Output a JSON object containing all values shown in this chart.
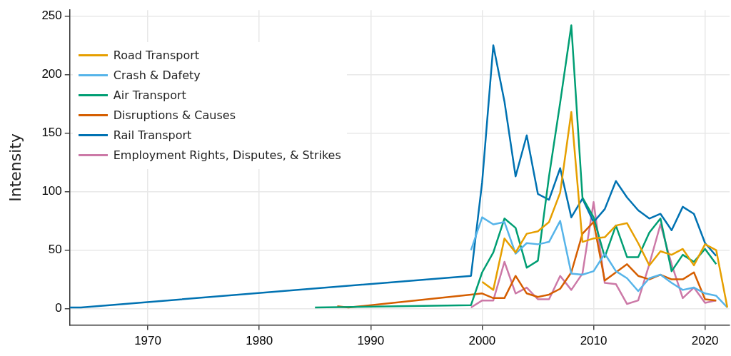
{
  "chart_data": {
    "type": "line",
    "ylabel": "Intensity",
    "xlim": [
      1963,
      2022.2
    ],
    "xticks": [
      1970,
      1980,
      1990,
      2000,
      2010,
      2020
    ],
    "ylim": [
      -14,
      255
    ],
    "yticks": [
      0,
      50,
      100,
      150,
      200,
      250
    ],
    "grid": true,
    "legend": "top left",
    "marker": "none",
    "line_style": "solid",
    "series": [
      {
        "name": "Road Transport",
        "color": "#e69f00",
        "x": [
          2000,
          2001,
          2002,
          2003,
          2004,
          2005,
          2006,
          2007,
          2008,
          2009,
          2010,
          2011,
          2012,
          2013,
          2014,
          2015,
          2016,
          2017,
          2018,
          2019,
          2020,
          2021,
          2022
        ],
        "values": [
          23,
          16,
          60,
          48,
          64,
          66,
          74,
          99,
          168,
          57,
          60,
          61,
          71,
          73,
          56,
          37,
          49,
          46,
          51,
          37,
          55,
          50,
          1
        ]
      },
      {
        "name": "Crash & Dafety",
        "color": "#56b4e9",
        "x": [
          1999,
          2000,
          2001,
          2002,
          2003,
          2004,
          2005,
          2006,
          2007,
          2008,
          2009,
          2010,
          2011,
          2012,
          2013,
          2014,
          2015,
          2016,
          2017,
          2018,
          2019,
          2020,
          2021,
          2022
        ],
        "values": [
          50,
          78,
          72,
          74,
          47,
          56,
          55,
          57,
          75,
          30,
          29,
          32,
          47,
          32,
          26,
          15,
          26,
          29,
          22,
          16,
          18,
          13,
          11,
          1
        ]
      },
      {
        "name": "Air Transport",
        "color": "#009e73",
        "x": [
          1985,
          1999,
          2000,
          2001,
          2002,
          2003,
          2004,
          2005,
          2006,
          2007,
          2008,
          2009,
          2010,
          2011,
          2012,
          2013,
          2014,
          2015,
          2016,
          2017,
          2018,
          2019,
          2020,
          2021
        ],
        "values": [
          1,
          3,
          31,
          48,
          77,
          69,
          35,
          41,
          113,
          176,
          242,
          95,
          78,
          44,
          71,
          44,
          44,
          65,
          77,
          32,
          46,
          40,
          51,
          38
        ]
      },
      {
        "name": "Disruptions & Causes",
        "color": "#d55e00",
        "x": [
          1987,
          1988,
          1999,
          2000,
          2001,
          2002,
          2003,
          2004,
          2005,
          2006,
          2007,
          2008,
          2009,
          2010,
          2011,
          2012,
          2013,
          2014,
          2015,
          2016,
          2017,
          2018,
          2019,
          2020,
          2021
        ],
        "values": [
          2,
          1,
          12,
          13,
          9,
          9,
          28,
          13,
          10,
          12,
          17,
          31,
          64,
          74,
          24,
          31,
          38,
          28,
          25,
          29,
          25,
          25,
          31,
          8,
          7
        ]
      },
      {
        "name": "Rail Transport",
        "color": "#0072b2",
        "x": [
          1963,
          1964,
          1999,
          2000,
          2001,
          2002,
          2003,
          2004,
          2005,
          2006,
          2007,
          2008,
          2009,
          2010,
          2011,
          2012,
          2013,
          2014,
          2015,
          2016,
          2017,
          2018,
          2019,
          2020,
          2021
        ],
        "values": [
          1,
          1,
          28,
          108,
          225,
          177,
          113,
          148,
          98,
          93,
          120,
          78,
          94,
          74,
          85,
          109,
          95,
          84,
          77,
          81,
          67,
          87,
          81,
          56,
          45
        ]
      },
      {
        "name": "Employment Rights, Disputes, & Strikes",
        "color": "#cc79a7",
        "x": [
          1999,
          2000,
          2001,
          2002,
          2003,
          2004,
          2005,
          2006,
          2007,
          2008,
          2009,
          2010,
          2011,
          2012,
          2013,
          2014,
          2015,
          2016,
          2017,
          2018,
          2019,
          2020,
          2021
        ],
        "values": [
          1,
          7,
          7,
          40,
          13,
          18,
          8,
          8,
          28,
          16,
          30,
          91,
          22,
          21,
          4,
          7,
          38,
          72,
          38,
          9,
          18,
          5,
          7
        ]
      }
    ]
  }
}
